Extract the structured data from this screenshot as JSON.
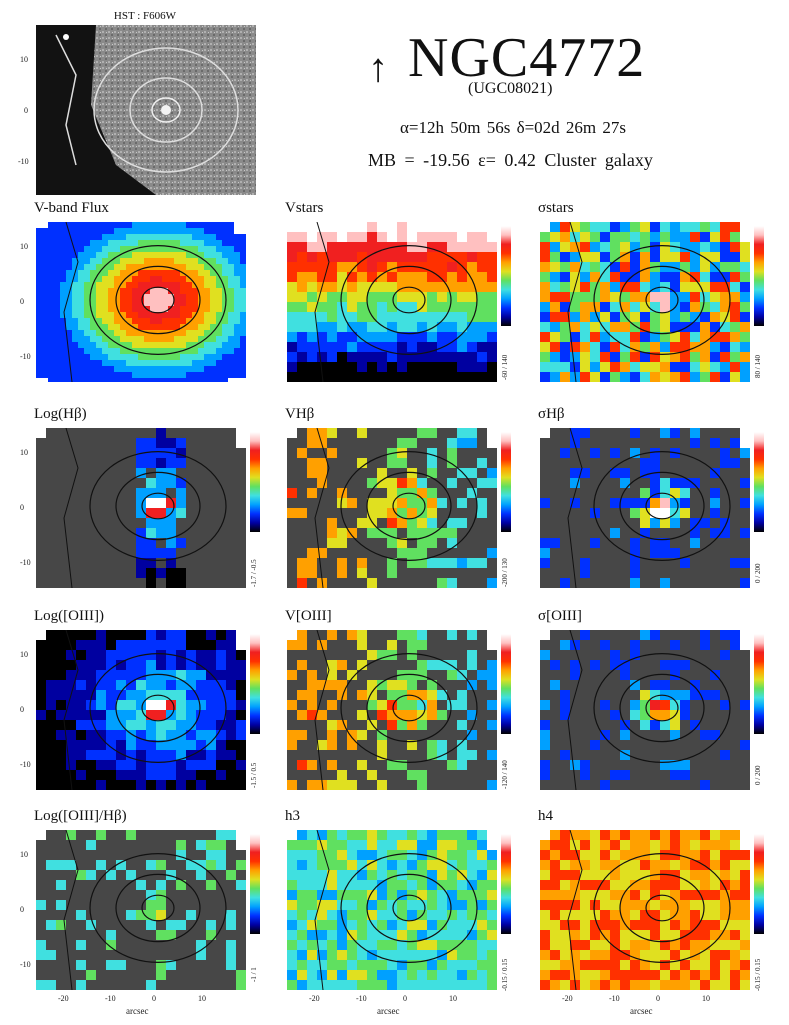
{
  "header": {
    "hst_label": "HST : F606W",
    "arrow": "↑",
    "galaxy_name": "NGC4772",
    "alt_name": "(UGC08021)",
    "coordinates": "α=12h 50m 56s    δ=02d 26m 27s",
    "properties": "MB = -19.56   ε= 0.42   Cluster galaxy",
    "hst_yticks": [
      "10",
      "0",
      "-10"
    ]
  },
  "panels": [
    {
      "title": "V-band Flux",
      "map": "flux",
      "range": ""
    },
    {
      "title": "Vstars",
      "map": "vel-stars",
      "range": "-60 / 140"
    },
    {
      "title": "σstars",
      "map": "sig-stars",
      "range": "80 / 140"
    },
    {
      "title": "Log(Hβ)",
      "map": "log-hb",
      "range": "-1.7 / -0.5"
    },
    {
      "title": "VHβ",
      "map": "vel-hb",
      "range": "-200 / 130"
    },
    {
      "title": "σHβ",
      "map": "sig-hb",
      "range": "0 / 200"
    },
    {
      "title": "Log([OIII])",
      "map": "log-oiii",
      "range": "-1.5 / 0.5"
    },
    {
      "title": "V[OIII]",
      "map": "vel-oiii",
      "range": "-120 / 140"
    },
    {
      "title": "σ[OIII]",
      "map": "sig-oiii",
      "range": "0 / 200"
    },
    {
      "title": "Log([OIII]/Hβ)",
      "map": "ratio",
      "range": "-1 / 1"
    },
    {
      "title": "h3",
      "map": "h3",
      "range": "-0.15 / 0.15"
    },
    {
      "title": "h4",
      "map": "h4",
      "range": "-0.15 / 0.15"
    }
  ],
  "axes": {
    "y_ticks": [
      "10",
      "0",
      "-10"
    ],
    "x_ticks": [
      "-20",
      "-10",
      "0",
      "10"
    ],
    "x_label": "arcsec",
    "y_label": "arcsec"
  },
  "colors": {
    "missing": "#474747",
    "colormap": [
      "#000000",
      "#0000a0",
      "#0030ff",
      "#00a0ff",
      "#40e0e0",
      "#60e060",
      "#e0e020",
      "#ffa000",
      "#ff3000",
      "#f02020",
      "#ffc0c0",
      "#ffffff"
    ]
  }
}
